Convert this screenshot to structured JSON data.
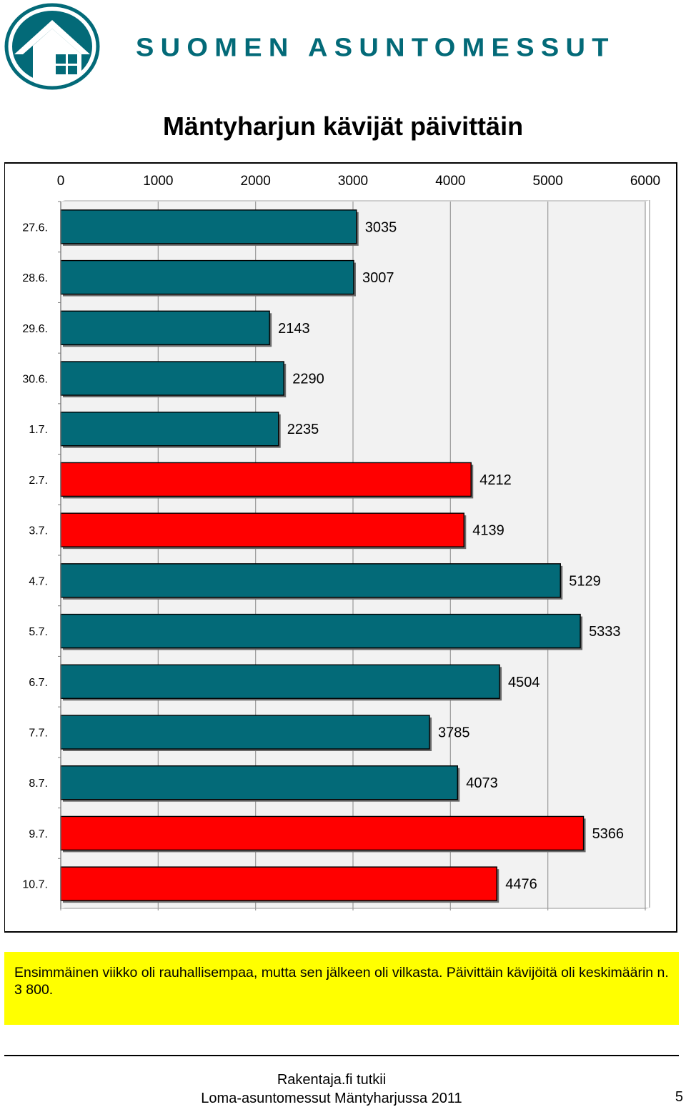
{
  "header": {
    "brand": "SUOMEN ASUNTOMESSUT",
    "brand_color": "#036a78"
  },
  "chart_data": {
    "type": "bar",
    "orientation": "horizontal",
    "title": "Mäntyharjun kävijät päivittäin",
    "categories": [
      "27.6.",
      "28.6.",
      "29.6.",
      "30.6.",
      "1.7.",
      "2.7.",
      "3.7.",
      "4.7.",
      "5.7.",
      "6.7.",
      "7.7.",
      "8.7.",
      "9.7.",
      "10.7."
    ],
    "values": [
      3035,
      3007,
      2143,
      2290,
      2235,
      4212,
      4139,
      5129,
      5333,
      4504,
      3785,
      4073,
      5366,
      4476
    ],
    "bar_colors": [
      "#036a78",
      "#036a78",
      "#036a78",
      "#036a78",
      "#036a78",
      "#ff0000",
      "#ff0000",
      "#036a78",
      "#036a78",
      "#036a78",
      "#036a78",
      "#036a78",
      "#ff0000",
      "#ff0000"
    ],
    "xlim": [
      0,
      6000
    ],
    "xticks": [
      0,
      1000,
      2000,
      3000,
      4000,
      5000,
      6000
    ],
    "x_axis_position": "top",
    "grid": true,
    "data_labels": true,
    "xlabel": "",
    "ylabel": ""
  },
  "note": {
    "text": "Ensimmäinen viikko oli rauhallisempaa, mutta sen jälkeen oli vilkasta. Päivittäin kävijöitä oli keskimäärin n. 3 800.",
    "background": "#ffff00"
  },
  "footer": {
    "line1": "Rakentaja.fi tutkii",
    "line2": "Loma-asuntomessut Mäntyharjussa 2011",
    "page_number": "5"
  }
}
